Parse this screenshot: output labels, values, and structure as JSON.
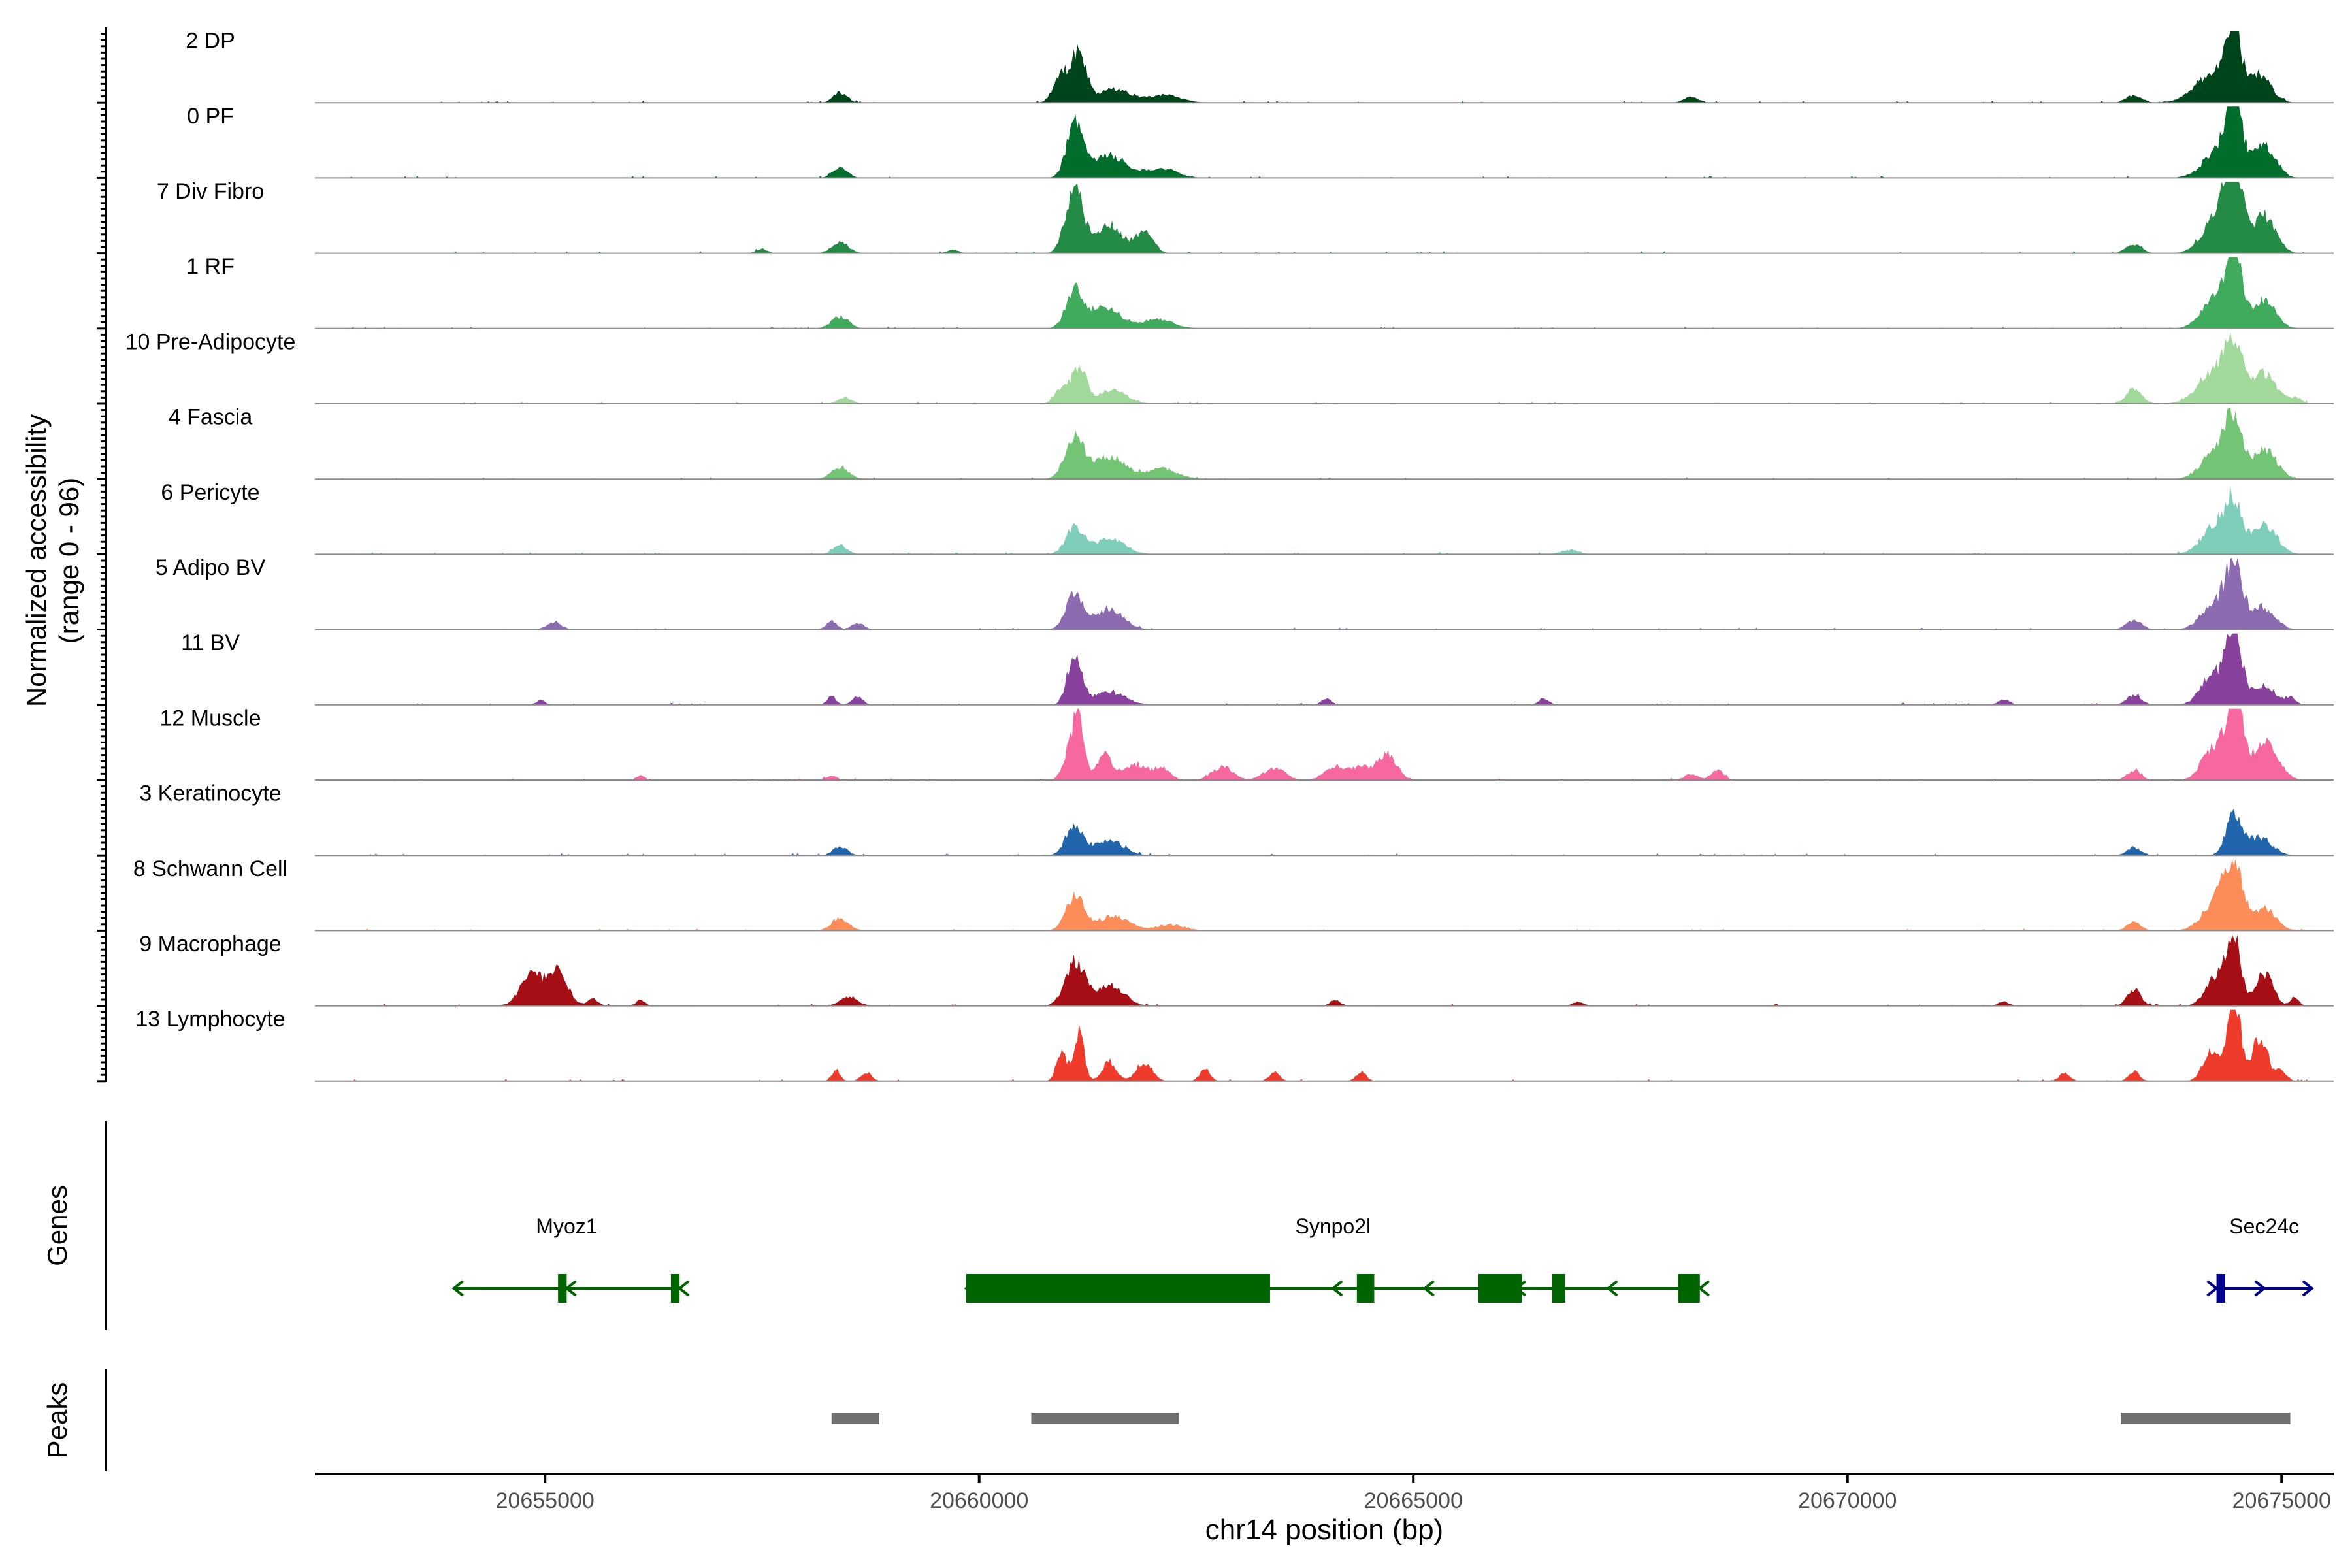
{
  "chart_data": {
    "type": "area",
    "title": "",
    "ylabel_line1": "Normalized accessibility",
    "ylabel_line2": "(range 0 - 96)",
    "y_range": [
      0,
      96
    ],
    "xlabel": "chr14 position (bp)",
    "xlim": [
      20652350,
      20675600
    ],
    "x_ticks": [
      20655000,
      20660000,
      20665000,
      20670000,
      20675000
    ],
    "x_tick_labels": [
      "20655000",
      "20660000",
      "20665000",
      "20670000",
      "20675000"
    ],
    "tracks": [
      {
        "name": "2 DP",
        "color": "#00441b",
        "peaks": [
          [
            20658400,
            14,
            80
          ],
          [
            20660950,
            38,
            90
          ],
          [
            20661150,
            70,
            80
          ],
          [
            20661550,
            18,
            200
          ],
          [
            20662150,
            10,
            180
          ],
          [
            20668200,
            8,
            80
          ],
          [
            20673300,
            10,
            90
          ],
          [
            20674250,
            44,
            220
          ],
          [
            20674450,
            85,
            75
          ],
          [
            20674750,
            36,
            130
          ]
        ]
      },
      {
        "name": "0 PF",
        "color": "#006d2c",
        "peaks": [
          [
            20658400,
            16,
            80
          ],
          [
            20661100,
            75,
            90
          ],
          [
            20661500,
            30,
            200
          ],
          [
            20662100,
            12,
            180
          ],
          [
            20674450,
            100,
            70
          ],
          [
            20674350,
            48,
            200
          ],
          [
            20674800,
            40,
            130
          ]
        ]
      },
      {
        "name": "7 Div Fibro",
        "color": "#238b45",
        "peaks": [
          [
            20658400,
            14,
            100
          ],
          [
            20657500,
            6,
            60
          ],
          [
            20659700,
            5,
            60
          ],
          [
            20661100,
            90,
            100
          ],
          [
            20661500,
            38,
            150
          ],
          [
            20661900,
            30,
            100
          ],
          [
            20673300,
            12,
            90
          ],
          [
            20674450,
            120,
            90
          ],
          [
            20674250,
            48,
            160
          ],
          [
            20674800,
            50,
            130
          ]
        ]
      },
      {
        "name": "1 RF",
        "color": "#41ab5d",
        "peaks": [
          [
            20658400,
            16,
            100
          ],
          [
            20661100,
            48,
            100
          ],
          [
            20661450,
            28,
            180
          ],
          [
            20662050,
            12,
            180
          ],
          [
            20674450,
            90,
            90
          ],
          [
            20674250,
            40,
            160
          ],
          [
            20674800,
            38,
            130
          ]
        ]
      },
      {
        "name": "10 Pre-Adipocyte",
        "color": "#a1d99b",
        "peaks": [
          [
            20658450,
            8,
            80
          ],
          [
            20660950,
            20,
            80
          ],
          [
            20661150,
            48,
            90
          ],
          [
            20661550,
            20,
            150
          ],
          [
            20673300,
            20,
            90
          ],
          [
            20674450,
            75,
            110
          ],
          [
            20674200,
            38,
            180
          ],
          [
            20674800,
            40,
            130
          ],
          [
            20675150,
            8,
            80
          ]
        ]
      },
      {
        "name": "4 Fascia",
        "color": "#74c476",
        "peaks": [
          [
            20658400,
            16,
            100
          ],
          [
            20661100,
            55,
            110
          ],
          [
            20661500,
            30,
            180
          ],
          [
            20662100,
            14,
            180
          ],
          [
            20674450,
            75,
            90
          ],
          [
            20674250,
            40,
            160
          ],
          [
            20674800,
            40,
            140
          ]
        ]
      },
      {
        "name": "6 Pericyte",
        "color": "#7fcdbb",
        "peaks": [
          [
            20658400,
            12,
            80
          ],
          [
            20661100,
            36,
            100
          ],
          [
            20661500,
            20,
            180
          ],
          [
            20666800,
            6,
            100
          ],
          [
            20674450,
            60,
            90
          ],
          [
            20674250,
            40,
            160
          ],
          [
            20674800,
            40,
            140
          ]
        ]
      },
      {
        "name": "5 Adipo BV",
        "color": "#8c6bb1",
        "peaks": [
          [
            20655100,
            10,
            80
          ],
          [
            20658300,
            12,
            60
          ],
          [
            20658600,
            9,
            70
          ],
          [
            20661100,
            50,
            100
          ],
          [
            20661500,
            28,
            160
          ],
          [
            20673300,
            12,
            90
          ],
          [
            20674450,
            90,
            100
          ],
          [
            20674200,
            30,
            140
          ],
          [
            20674800,
            30,
            130
          ]
        ]
      },
      {
        "name": "11 BV",
        "color": "#88419d",
        "peaks": [
          [
            20654950,
            6,
            50
          ],
          [
            20658300,
            12,
            50
          ],
          [
            20658600,
            12,
            60
          ],
          [
            20661100,
            70,
            80
          ],
          [
            20661500,
            18,
            180
          ],
          [
            20664000,
            8,
            60
          ],
          [
            20666500,
            8,
            60
          ],
          [
            20671800,
            8,
            60
          ],
          [
            20673300,
            14,
            80
          ],
          [
            20674450,
            105,
            90
          ],
          [
            20674200,
            40,
            130
          ],
          [
            20674800,
            28,
            120
          ],
          [
            20675100,
            10,
            60
          ]
        ]
      },
      {
        "name": "12 Muscle",
        "color": "#f768a1",
        "peaks": [
          [
            20661150,
            75,
            60
          ],
          [
            20661050,
            40,
            80
          ],
          [
            20661450,
            34,
            90
          ],
          [
            20661800,
            22,
            120
          ],
          [
            20662100,
            16,
            100
          ],
          [
            20662800,
            18,
            120
          ],
          [
            20663400,
            16,
            120
          ],
          [
            20664100,
            18,
            120
          ],
          [
            20664700,
            34,
            110
          ],
          [
            20664400,
            16,
            120
          ],
          [
            20668200,
            8,
            80
          ],
          [
            20668500,
            14,
            70
          ],
          [
            20673300,
            12,
            80
          ],
          [
            20674450,
            125,
            85
          ],
          [
            20674200,
            42,
            120
          ],
          [
            20674800,
            50,
            150
          ],
          [
            20658300,
            6,
            60
          ],
          [
            20656100,
            6,
            50
          ]
        ]
      },
      {
        "name": "3 Keratinocyte",
        "color": "#2166ac",
        "peaks": [
          [
            20658400,
            12,
            80
          ],
          [
            20661100,
            42,
            100
          ],
          [
            20661500,
            20,
            160
          ],
          [
            20673300,
            10,
            80
          ],
          [
            20674450,
            55,
            90
          ],
          [
            20674750,
            24,
            140
          ]
        ]
      },
      {
        "name": "8 Schwann Cell",
        "color": "#fc8d59",
        "peaks": [
          [
            20658400,
            16,
            100
          ],
          [
            20661100,
            48,
            100
          ],
          [
            20661550,
            20,
            180
          ],
          [
            20662200,
            8,
            160
          ],
          [
            20673300,
            12,
            80
          ],
          [
            20674450,
            75,
            110
          ],
          [
            20674250,
            36,
            160
          ],
          [
            20674800,
            30,
            130
          ]
        ]
      },
      {
        "name": "9 Macrophage",
        "color": "#a50f15",
        "peaks": [
          [
            20654850,
            42,
            130
          ],
          [
            20655150,
            48,
            110
          ],
          [
            20655550,
            10,
            60
          ],
          [
            20656100,
            8,
            50
          ],
          [
            20658500,
            12,
            100
          ],
          [
            20661100,
            60,
            110
          ],
          [
            20661500,
            30,
            160
          ],
          [
            20664100,
            8,
            60
          ],
          [
            20666900,
            6,
            60
          ],
          [
            20671800,
            6,
            60
          ],
          [
            20673300,
            22,
            80
          ],
          [
            20674250,
            40,
            120
          ],
          [
            20674450,
            95,
            80
          ],
          [
            20674800,
            45,
            100
          ],
          [
            20675150,
            10,
            50
          ]
        ]
      },
      {
        "name": "13 Lymphocyte",
        "color": "#ef3b2c",
        "peaks": [
          [
            20658350,
            14,
            50
          ],
          [
            20658700,
            12,
            60
          ],
          [
            20660950,
            38,
            60
          ],
          [
            20661150,
            64,
            60
          ],
          [
            20661500,
            26,
            80
          ],
          [
            20661900,
            26,
            90
          ],
          [
            20662600,
            16,
            60
          ],
          [
            20663400,
            12,
            60
          ],
          [
            20664400,
            12,
            60
          ],
          [
            20672500,
            12,
            60
          ],
          [
            20673300,
            14,
            60
          ],
          [
            20674200,
            40,
            100
          ],
          [
            20674450,
            125,
            70
          ],
          [
            20674750,
            60,
            90
          ],
          [
            20675000,
            14,
            60
          ]
        ]
      }
    ],
    "genes_label": "Genes",
    "peaks_label": "Peaks",
    "genes": [
      {
        "name": "Myoz1",
        "strand": "-",
        "color": "#006400",
        "start": 20653950,
        "end": 20656550,
        "exons": [
          [
            20655150,
            20655250
          ],
          [
            20656450,
            20656550
          ]
        ]
      },
      {
        "name": "Synpo2l",
        "strand": "-",
        "color": "#006400",
        "start": 20659850,
        "end": 20668300,
        "exons": [
          [
            20659850,
            20663350
          ],
          [
            20664350,
            20664550
          ],
          [
            20665750,
            20666250
          ],
          [
            20666600,
            20666750
          ],
          [
            20668050,
            20668300
          ]
        ]
      },
      {
        "name": "Sec24c",
        "strand": "+",
        "color": "#00008b",
        "start": 20674250,
        "end": 20675350,
        "exons": [
          [
            20674250,
            20674350
          ]
        ]
      }
    ],
    "peak_regions": [
      [
        20658300,
        20658850
      ],
      [
        20660600,
        20662300
      ],
      [
        20673150,
        20675100
      ]
    ]
  }
}
